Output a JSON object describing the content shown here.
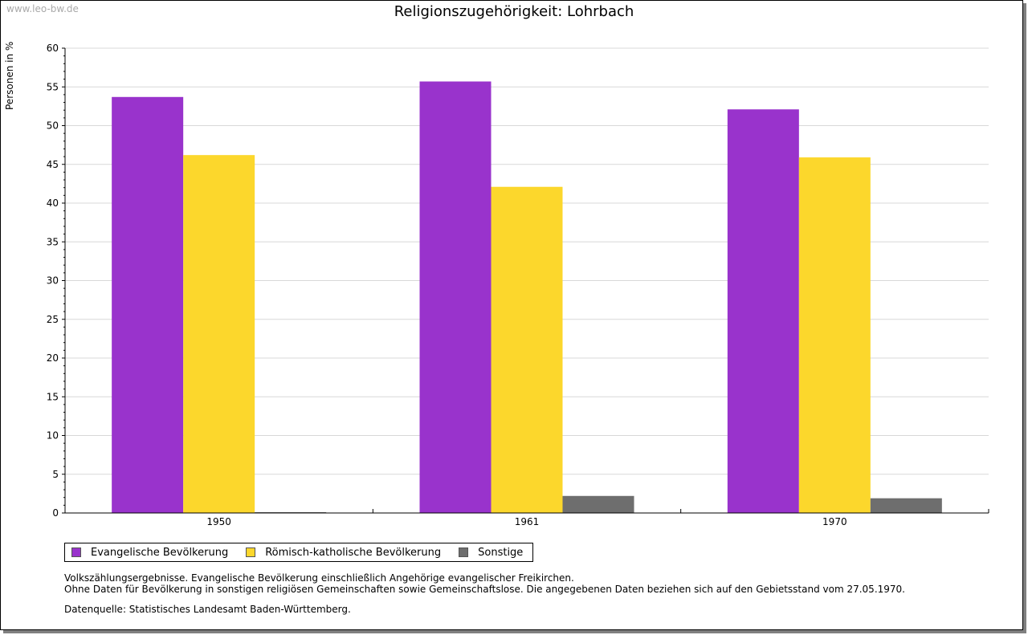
{
  "watermark": "www.leo-bw.de",
  "chart_data": {
    "type": "bar",
    "title": "Religionszugehörigkeit: Lohrbach",
    "xlabel": "",
    "ylabel": "Personen in %",
    "categories": [
      "1950",
      "1961",
      "1970"
    ],
    "series": [
      {
        "name": "Evangelische Bevölkerung",
        "color": "#9933cc",
        "values": [
          53.7,
          55.7,
          52.1
        ]
      },
      {
        "name": "Römisch-katholische Bevölkerung",
        "color": "#fcd72c",
        "values": [
          46.2,
          42.1,
          45.9
        ]
      },
      {
        "name": "Sonstige",
        "color": "#6e6e6e",
        "values": [
          0.1,
          2.2,
          1.9
        ]
      }
    ],
    "ylim": [
      0,
      60
    ],
    "yticks": [
      0,
      5,
      10,
      15,
      20,
      25,
      30,
      35,
      40,
      45,
      50,
      55,
      60
    ],
    "grid": true,
    "legend": "bottom-left"
  },
  "notes": [
    "Volkszählungsergebnisse. Evangelische Bevölkerung einschließlich Angehörige evangelischer Freikirchen.",
    "Ohne Daten für Bevölkerung in sonstigen religiösen Gemeinschaften sowie Gemeinschaftslose. Die angegebenen Daten beziehen sich auf den Gebietsstand vom 27.05.1970."
  ],
  "source": "Datenquelle: Statistisches Landesamt Baden-Württemberg."
}
